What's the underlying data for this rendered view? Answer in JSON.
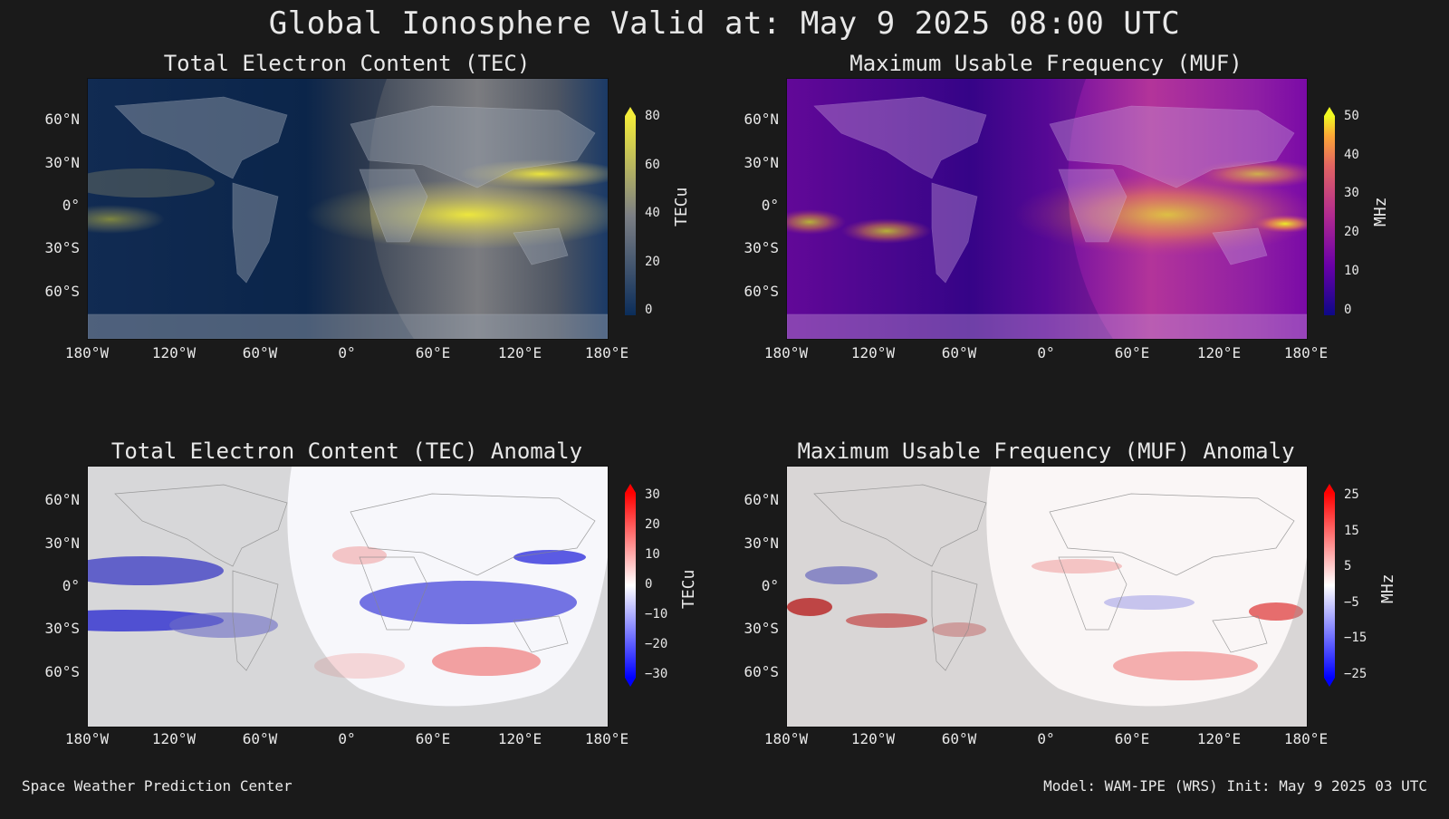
{
  "title": "Global Ionosphere Valid at: May 9 2025 08:00 UTC",
  "footer_left": "Space Weather Prediction Center",
  "footer_right": "Model: WAM-IPE (WRS) Init: May 9 2025 03 UTC",
  "lat_labels": [
    "60°N",
    "30°N",
    "0°",
    "30°S",
    "60°S"
  ],
  "lon_labels": [
    "180°W",
    "120°W",
    "60°W",
    "0°",
    "60°E",
    "120°E",
    "180°E"
  ],
  "panels": {
    "tec": {
      "title": "Total Electron Content (TEC)",
      "unit": "TECu",
      "ticks": [
        "80",
        "60",
        "40",
        "20",
        "0"
      ],
      "colormap": "cividis-like",
      "colors": {
        "low": "#0b2d5a",
        "mid": "#7c7f84",
        "high": "#f3ec3a"
      }
    },
    "muf": {
      "title": "Maximum Usable Frequency (MUF)",
      "unit": "MHz",
      "ticks": [
        "50",
        "40",
        "30",
        "20",
        "10",
        "0"
      ],
      "colormap": "plasma",
      "colors": {
        "low": "#0d0887",
        "mid": "#cc4778",
        "high": "#f0f921"
      }
    },
    "tec_anom": {
      "title": "Total Electron Content (TEC) Anomaly",
      "unit": "TECu",
      "ticks": [
        "30",
        "20",
        "10",
        "0",
        "−10",
        "−20",
        "−30"
      ],
      "colormap": "bwr",
      "colors": {
        "low": "#0000ff",
        "mid": "#ffffff",
        "high": "#ff0000"
      }
    },
    "muf_anom": {
      "title": "Maximum Usable Frequency (MUF) Anomaly",
      "unit": "MHz",
      "ticks": [
        "25",
        "15",
        "5",
        "−5",
        "−15",
        "−25"
      ],
      "colormap": "bwr",
      "colors": {
        "low": "#0000ff",
        "mid": "#ffffff",
        "high": "#ff0000"
      }
    }
  }
}
